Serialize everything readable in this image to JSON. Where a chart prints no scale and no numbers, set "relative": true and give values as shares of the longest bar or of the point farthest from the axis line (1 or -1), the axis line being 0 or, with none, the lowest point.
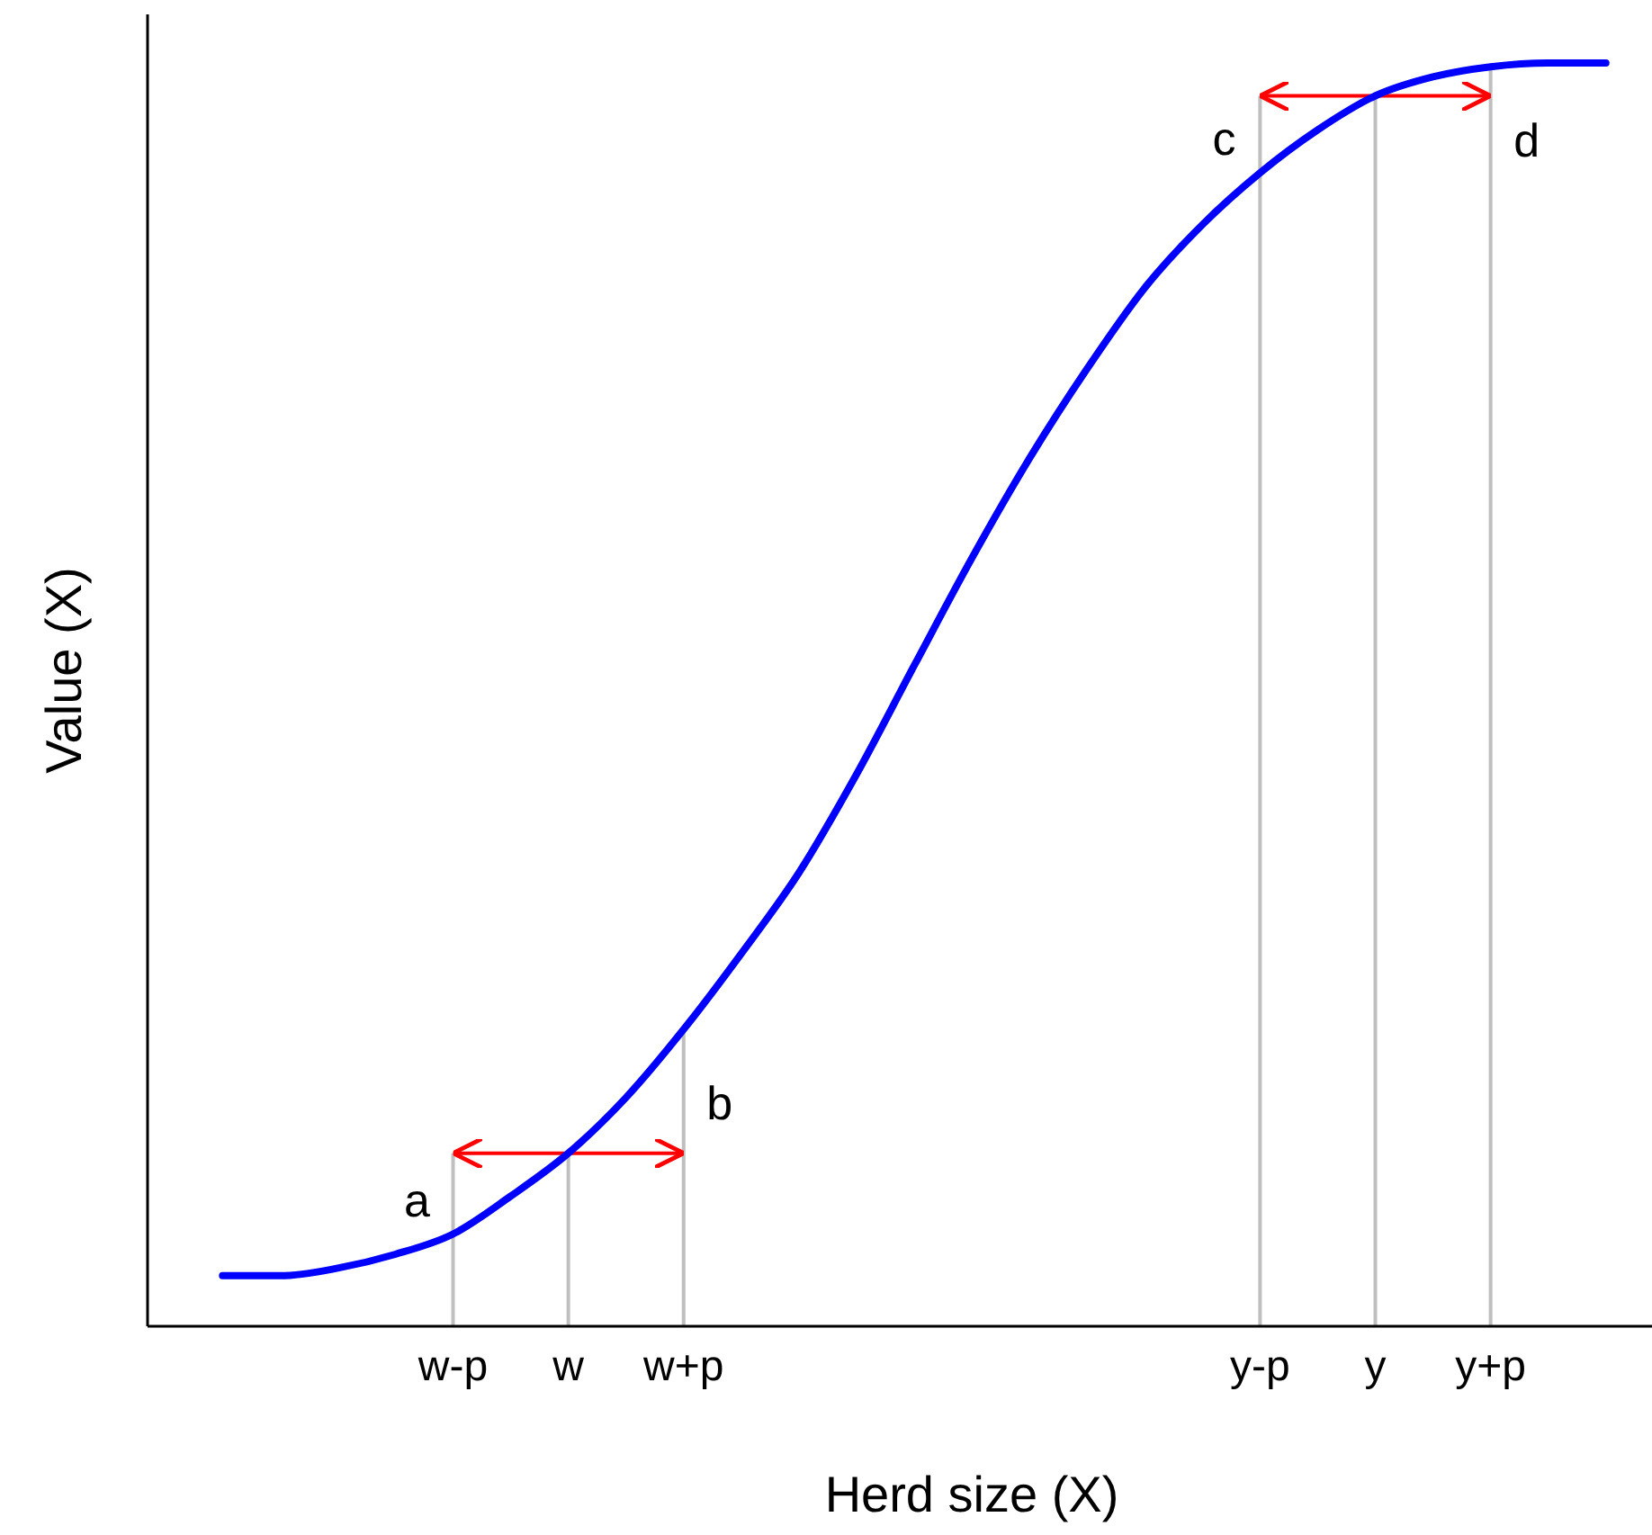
{
  "chart_data": {
    "type": "line",
    "xlabel": "Herd size (X)",
    "ylabel": "Value (X)",
    "relative": true,
    "categories": [
      null,
      null,
      null,
      null,
      "w-p",
      null,
      "w",
      null,
      "w+p",
      null,
      null,
      null,
      null,
      null,
      null,
      null,
      null,
      null,
      "y-p",
      null,
      "y",
      null,
      "y+p",
      null,
      null
    ],
    "tick_labels": "x",
    "grid": false,
    "series": [
      {
        "color": "#0000ff",
        "values": [
          0.04,
          0.04,
          0.046,
          0.057,
          0.073,
          0.103,
          0.137,
          0.181,
          0.235,
          0.295,
          0.359,
          0.437,
          0.523,
          0.608,
          0.687,
          0.758,
          0.822,
          0.872,
          0.913,
          0.947,
          0.974,
          0.989,
          0.997,
          1,
          1
        ]
      }
    ],
    "ref_lines": [
      {
        "axis": "x",
        "value": "w-p",
        "color": "#bfbfbf"
      },
      {
        "axis": "x",
        "value": "w",
        "color": "#bfbfbf"
      },
      {
        "axis": "x",
        "value": "w+p",
        "color": "#bfbfbf"
      },
      {
        "axis": "x",
        "value": "y-p",
        "color": "#bfbfbf"
      },
      {
        "axis": "x",
        "value": "y",
        "color": "#bfbfbf"
      },
      {
        "axis": "x",
        "value": "y+p",
        "color": "#bfbfbf"
      }
    ],
    "annotations": [
      {
        "text": "a",
        "x": "w-p",
        "y": 0.073
      },
      {
        "text": "b",
        "x": "w+p",
        "y": 0.235
      },
      {
        "text": "c",
        "x": "y-p",
        "y": 0.913
      },
      {
        "text": "d",
        "x": "y+p",
        "y": 0.997
      }
    ]
  }
}
